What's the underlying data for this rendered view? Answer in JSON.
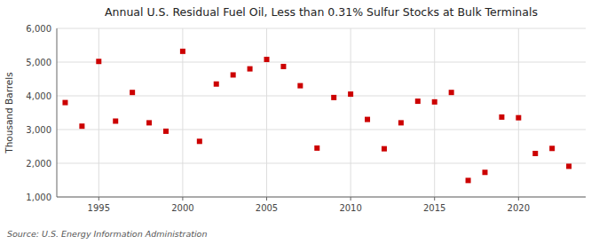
{
  "chart_data": {
    "type": "scatter",
    "title": "Annual U.S. Residual Fuel Oil, Less than 0.31% Sulfur Stocks at Bulk Terminals",
    "ylabel": "Thousand Barrels",
    "annotations": [
      "Source: U.S. Energy Information Administration"
    ],
    "x": [
      1993,
      1994,
      1995,
      1996,
      1997,
      1998,
      1999,
      2000,
      2001,
      2002,
      2003,
      2004,
      2005,
      2006,
      2007,
      2008,
      2009,
      2010,
      2011,
      2012,
      2013,
      2014,
      2015,
      2016,
      2017,
      2018,
      2019,
      2020,
      2021,
      2022,
      2023
    ],
    "values": [
      3800,
      3100,
      5020,
      3250,
      4100,
      3200,
      2950,
      5320,
      2650,
      4350,
      4620,
      4800,
      5080,
      4870,
      4300,
      2450,
      3950,
      4050,
      3300,
      2430,
      3200,
      3840,
      3820,
      4100,
      1490,
      1730,
      3370,
      3350,
      2290,
      2440,
      1910
    ],
    "color": "#cc0000",
    "marker": "square",
    "xlim": [
      1992.5,
      2024
    ],
    "xticks": [
      1995,
      2000,
      2005,
      2010,
      2015,
      2020
    ],
    "ylim": [
      1000,
      6000
    ],
    "yticks": [
      {
        "value": 1000,
        "label": "1,000"
      },
      {
        "value": 2000,
        "label": "2,000"
      },
      {
        "value": 3000,
        "label": "3,000"
      },
      {
        "value": 4000,
        "label": "4,000"
      },
      {
        "value": 5000,
        "label": "5,000"
      },
      {
        "value": 6000,
        "label": "6,000"
      }
    ],
    "grid": true
  }
}
